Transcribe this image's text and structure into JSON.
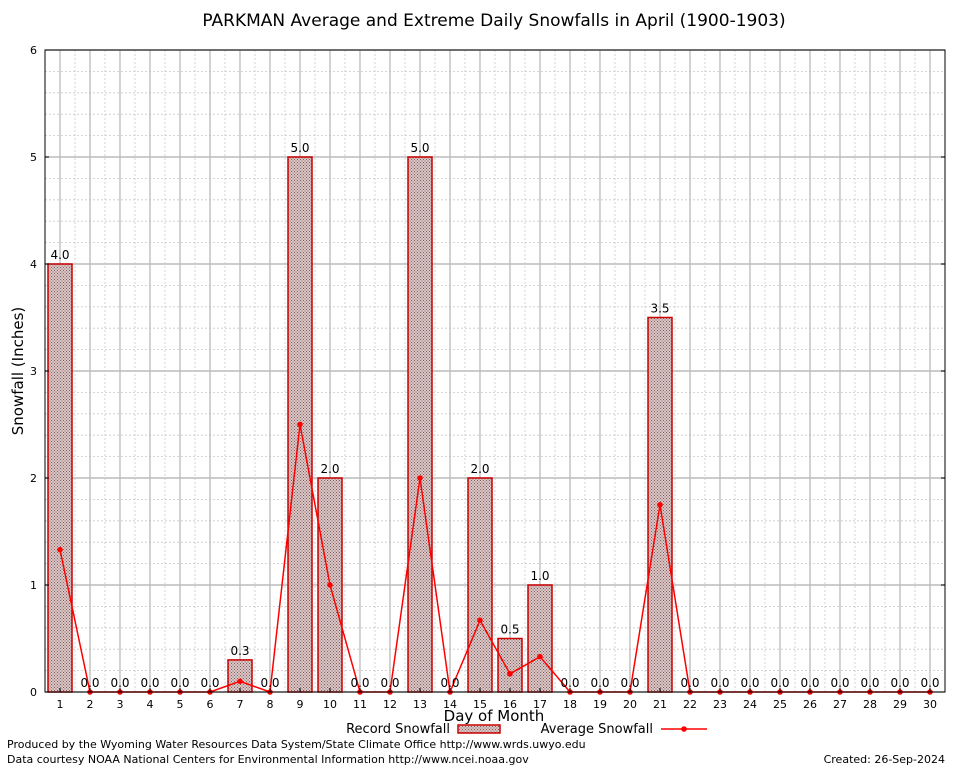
{
  "chart_data": {
    "type": "bar",
    "title": "PARKMAN Average and Extreme Daily Snowfalls in April (1900-1903)",
    "xlabel": "Day of Month",
    "ylabel": "Snowfall (Inches)",
    "ylim": [
      0,
      6
    ],
    "yticks": [
      "0",
      "1",
      "2",
      "3",
      "4",
      "5",
      "6"
    ],
    "grid": true,
    "legend_position": "bottom-center",
    "categories": [
      "1",
      "2",
      "3",
      "4",
      "5",
      "6",
      "7",
      "8",
      "9",
      "10",
      "11",
      "12",
      "13",
      "14",
      "15",
      "16",
      "17",
      "18",
      "19",
      "20",
      "21",
      "22",
      "23",
      "24",
      "25",
      "26",
      "27",
      "28",
      "29",
      "30"
    ],
    "series": [
      {
        "name": "Record Snowfall",
        "type": "bar",
        "color": "#cc0000",
        "fill": "#a08080",
        "values": [
          4.0,
          0.0,
          0.0,
          0.0,
          0.0,
          0.0,
          0.3,
          0.0,
          5.0,
          2.0,
          0.0,
          0.0,
          5.0,
          0.0,
          2.0,
          0.5,
          1.0,
          0.0,
          0.0,
          0.0,
          3.5,
          0.0,
          0.0,
          0.0,
          0.0,
          0.0,
          0.0,
          0.0,
          0.0,
          0.0
        ],
        "labels": [
          "4.0",
          "0.0",
          "0.0",
          "0.0",
          "0.0",
          "0.0",
          "0.3",
          "0.0",
          "5.0",
          "2.0",
          "0.0",
          "0.0",
          "5.0",
          "0.0",
          "2.0",
          "0.5",
          "1.0",
          "0.0",
          "0.0",
          "0.0",
          "3.5",
          "0.0",
          "0.0",
          "0.0",
          "0.0",
          "0.0",
          "0.0",
          "0.0",
          "0.0",
          "0.0"
        ]
      },
      {
        "name": "Average Snowfall",
        "type": "line",
        "color": "#ff0000",
        "values": [
          1.33,
          0,
          0,
          0,
          0,
          0,
          0.1,
          0,
          2.5,
          1.0,
          0,
          0,
          2.0,
          0,
          0.67,
          0.17,
          0.33,
          0,
          0,
          0,
          1.75,
          0,
          0,
          0,
          0,
          0,
          0,
          0,
          0,
          0
        ]
      }
    ]
  },
  "footer": {
    "produced_by": "Produced by the Wyoming Water Resources Data System/State Climate Office http://www.wrds.uwyo.edu",
    "courtesy": "Data courtesy NOAA National Centers for Environmental Information http://www.ncei.noaa.gov",
    "created": "Created:  26-Sep-2024"
  }
}
